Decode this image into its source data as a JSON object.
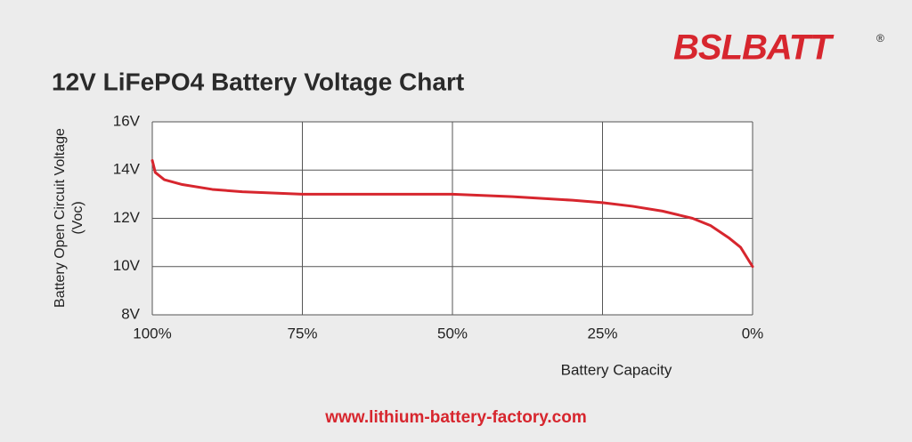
{
  "chart_data": {
    "type": "line",
    "title": "12V LiFePO4 Battery Voltage Chart",
    "y_label": [
      "Battery Open Circuit Voltage",
      "(Voc)"
    ],
    "x_label": "Battery Capacity",
    "x": [
      100,
      99.5,
      98,
      95,
      90,
      85,
      80,
      75,
      60,
      50,
      40,
      30,
      25,
      20,
      15,
      10,
      7,
      4,
      2,
      0
    ],
    "series": [
      {
        "name": "12V LiFePO4",
        "color": "#d7262e",
        "values": [
          14.4,
          13.9,
          13.6,
          13.4,
          13.2,
          13.1,
          13.05,
          13.0,
          13.0,
          13.0,
          12.9,
          12.75,
          12.65,
          12.5,
          12.3,
          12.0,
          11.7,
          11.2,
          10.8,
          10.0
        ]
      }
    ],
    "xlim": [
      100,
      0
    ],
    "xticks": [
      {
        "value": 100,
        "label": "100%"
      },
      {
        "value": 75,
        "label": "75%"
      },
      {
        "value": 50,
        "label": "50%"
      },
      {
        "value": 25,
        "label": "25%"
      },
      {
        "value": 0,
        "label": "0%"
      }
    ],
    "ylim": [
      8,
      16
    ],
    "yticks": [
      {
        "value": 8,
        "label": "8V"
      },
      {
        "value": 10,
        "label": "10V"
      },
      {
        "value": 12,
        "label": "12V"
      },
      {
        "value": 14,
        "label": "14V"
      },
      {
        "value": 16,
        "label": "16V"
      }
    ],
    "grid": true
  },
  "logo": {
    "text": "BSLBATT",
    "mark": "®"
  },
  "footer": "www.lithium-battery-factory.com"
}
